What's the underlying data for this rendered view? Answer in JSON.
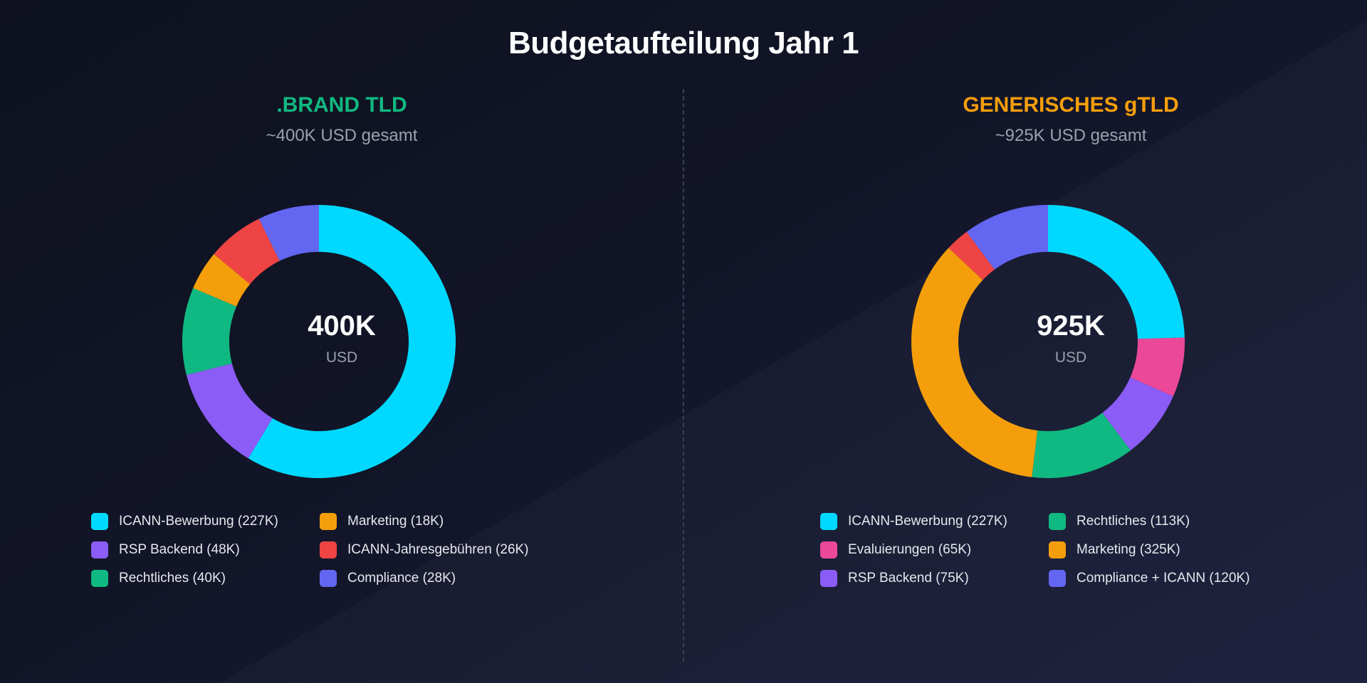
{
  "title": "Budgetaufteilung Jahr 1",
  "chart_data": [
    {
      "type": "pie",
      "variant": "donut",
      "title": ".BRAND TLD",
      "subtitle": "~400K USD gesamt",
      "title_color": "#10b981",
      "center_value": "400K",
      "center_unit": "USD",
      "slices": [
        {
          "value": 227,
          "color": "#00d9ff"
        },
        {
          "value": 48,
          "color": "#8b5cf6"
        },
        {
          "value": 40,
          "color": "#10b981"
        },
        {
          "value": 18,
          "color": "#f59e0b"
        },
        {
          "value": 26,
          "color": "#ef4444"
        },
        {
          "value": 28,
          "color": "#6366f1"
        }
      ],
      "legend": [
        {
          "label": "ICANN-Bewerbung (227K)",
          "color": "#00d9ff"
        },
        {
          "label": "RSP Backend (48K)",
          "color": "#8b5cf6"
        },
        {
          "label": "Rechtliches (40K)",
          "color": "#10b981"
        },
        {
          "label": "Marketing (18K)",
          "color": "#f59e0b"
        },
        {
          "label": "ICANN-Jahresgebühren (26K)",
          "color": "#ef4444"
        },
        {
          "label": "Compliance (28K)",
          "color": "#6366f1"
        }
      ]
    },
    {
      "type": "pie",
      "variant": "donut",
      "title": "GENERISCHES gTLD",
      "subtitle": "~925K USD gesamt",
      "title_color": "#f59e0b",
      "center_value": "925K",
      "center_unit": "USD",
      "slices": [
        {
          "value": 227,
          "color": "#00d9ff"
        },
        {
          "value": 65,
          "color": "#ec4899"
        },
        {
          "value": 75,
          "color": "#8b5cf6"
        },
        {
          "value": 113,
          "color": "#10b981"
        },
        {
          "value": 325,
          "color": "#f59e0b"
        },
        {
          "value": 26,
          "color": "#ef4444"
        },
        {
          "value": 94,
          "color": "#6366f1"
        }
      ],
      "legend": [
        {
          "label": "ICANN-Bewerbung (227K)",
          "color": "#00d9ff"
        },
        {
          "label": "Evaluierungen (65K)",
          "color": "#ec4899"
        },
        {
          "label": "RSP Backend (75K)",
          "color": "#8b5cf6"
        },
        {
          "label": "Rechtliches (113K)",
          "color": "#10b981"
        },
        {
          "label": "Marketing (325K)",
          "color": "#f59e0b"
        },
        {
          "label": "Compliance + ICANN (120K)",
          "color": "#6366f1"
        }
      ]
    }
  ]
}
